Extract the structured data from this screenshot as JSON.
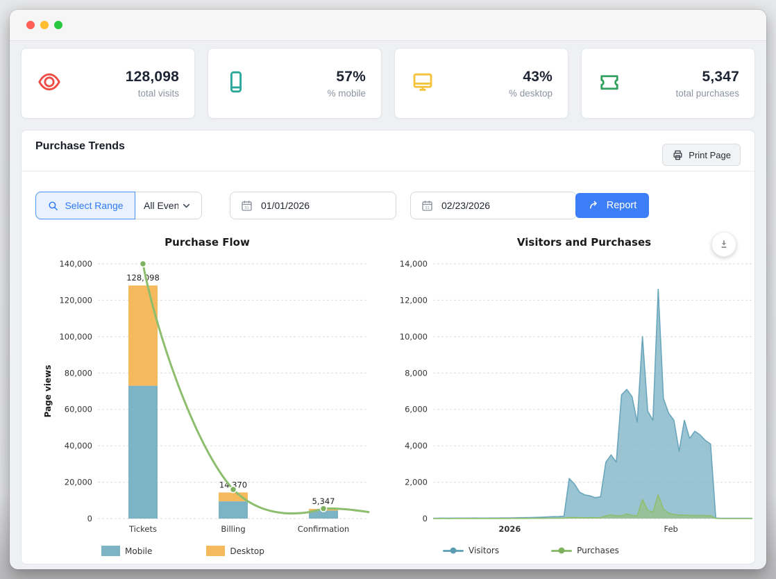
{
  "window": {
    "traffic_lights": {
      "close": "#ff5f57",
      "minimize": "#febc2e",
      "zoom": "#28c740"
    }
  },
  "stat_cards": [
    {
      "icon": "eye-icon",
      "icon_color": "#ee4b45",
      "value": "128,098",
      "label": "total visits"
    },
    {
      "icon": "mobile-icon",
      "icon_color": "#2aa79b",
      "value": "57%",
      "label": "% mobile"
    },
    {
      "icon": "desktop-icon",
      "icon_color": "#f4c33c",
      "value": "43%",
      "label": "% desktop"
    },
    {
      "icon": "ticket-icon",
      "icon_color": "#33a05f",
      "value": "5,347",
      "label": "total purchases"
    }
  ],
  "panel": {
    "title": "Purchase Trends",
    "print_button": "Print Page",
    "filters": {
      "select_range": "Select Range",
      "event_dropdown": "All Events",
      "date_from": "01/01/2026",
      "date_to": "02/23/2026",
      "report_button": "Report"
    }
  },
  "chart_data": [
    {
      "type": "bar",
      "title": "Purchase Flow",
      "ylabel": "Page views",
      "categories": [
        "Tickets",
        "Billing",
        "Confirmation"
      ],
      "ylim": [
        0,
        140000
      ],
      "yticks": [
        "0",
        "20,000",
        "40,000",
        "60,000",
        "80,000",
        "100,000",
        "120,000",
        "140,000"
      ],
      "grid": "dashed",
      "legend_position": "bottom",
      "series": [
        {
          "name": "Mobile",
          "type": "bar",
          "color": "#7db4c5",
          "values": [
            73016,
            9500,
            4400
          ]
        },
        {
          "name": "Desktop",
          "type": "bar",
          "color": "#f6ba5e",
          "values": [
            55082,
            4870,
            947
          ]
        },
        {
          "name": "Flow",
          "type": "line",
          "color": "#8cbe6e",
          "values": [
            140000,
            16000,
            5500
          ]
        }
      ],
      "bar_total_labels": [
        "128,098",
        "14,370",
        "5,347"
      ]
    },
    {
      "type": "area",
      "title": "Visitors and Purchases",
      "ylim": [
        0,
        14000
      ],
      "yticks": [
        "0",
        "2,000",
        "4,000",
        "6,000",
        "8,000",
        "10,000",
        "12,000",
        "14,000"
      ],
      "grid": "dashed",
      "legend_position": "bottom",
      "x_labels": [
        {
          "label": "2026",
          "pos": 0.24,
          "bold": true
        },
        {
          "label": "Feb",
          "pos": 0.745,
          "bold": false
        }
      ],
      "series": [
        {
          "name": "Visitors",
          "color": "#69a6bb",
          "fill": "rgba(125,180,197,0.78)",
          "values": [
            20,
            22,
            25,
            23,
            26,
            28,
            25,
            27,
            30,
            28,
            26,
            30,
            32,
            35,
            38,
            40,
            45,
            50,
            55,
            60,
            70,
            80,
            95,
            105,
            115,
            130,
            2200,
            1900,
            1450,
            1300,
            1250,
            1150,
            1200,
            3100,
            3500,
            3100,
            6800,
            7100,
            6700,
            5300,
            10000,
            5900,
            5400,
            12600,
            6600,
            5800,
            5400,
            3700,
            5400,
            4400,
            4800,
            4600,
            4300,
            4100,
            30,
            20,
            20,
            20,
            20,
            20,
            20,
            20
          ]
        },
        {
          "name": "Purchases",
          "color": "#8cbe6e",
          "fill": "rgba(150,193,115,0.6)",
          "values": [
            5,
            5,
            6,
            5,
            6,
            7,
            6,
            6,
            7,
            6,
            6,
            7,
            8,
            8,
            9,
            10,
            10,
            12,
            12,
            14,
            15,
            16,
            18,
            20,
            22,
            25,
            60,
            55,
            50,
            45,
            50,
            45,
            50,
            150,
            200,
            160,
            150,
            250,
            180,
            150,
            1050,
            450,
            350,
            1300,
            520,
            300,
            220,
            200,
            190,
            180,
            170,
            170,
            165,
            160,
            10,
            5,
            5,
            5,
            5,
            5,
            5,
            5
          ]
        }
      ]
    }
  ]
}
